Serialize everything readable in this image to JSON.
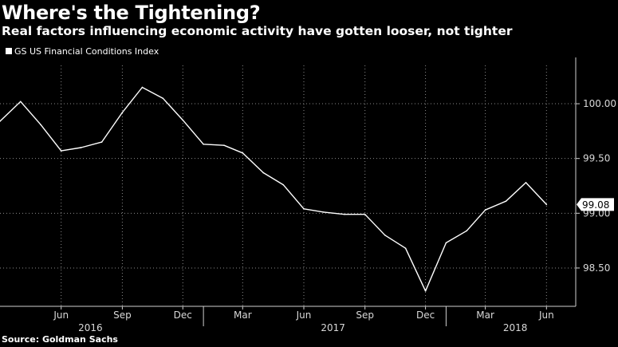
{
  "chart_data": {
    "type": "line",
    "title": "Where's the Tightening?",
    "subtitle": "Real factors influencing economic activity have gotten looser, not tighter",
    "source": "Source: Goldman Sachs",
    "legend": {
      "placement": "top-left",
      "entries": [
        "GS US Financial Conditions Index"
      ]
    },
    "grid": true,
    "x_ticks": [
      {
        "label": "Jun",
        "date": "2016-06-01"
      },
      {
        "label": "Sep",
        "date": "2016-09-01"
      },
      {
        "label": "Dec",
        "date": "2016-12-01"
      },
      {
        "label": "Mar",
        "date": "2017-03-01"
      },
      {
        "label": "Jun",
        "date": "2017-06-01"
      },
      {
        "label": "Sep",
        "date": "2017-09-01"
      },
      {
        "label": "Dec",
        "date": "2017-12-01"
      },
      {
        "label": "Mar",
        "date": "2018-03-01"
      },
      {
        "label": "Jun",
        "date": "2018-06-01"
      }
    ],
    "x_year_labels": [
      {
        "label": "2016",
        "date": "2016-07-15"
      },
      {
        "label": "2017",
        "date": "2017-07-15"
      },
      {
        "label": "2018",
        "date": "2018-04-15"
      }
    ],
    "x_range": [
      "2016-03-01",
      "2018-07-15"
    ],
    "y_ticks": [
      98.5,
      99.0,
      99.5,
      100.0
    ],
    "y_tick_labels": [
      "98.50",
      "99.00",
      "99.50",
      "100.00"
    ],
    "ylim": [
      98.15,
      100.35
    ],
    "last_value_label": "99.08",
    "series": [
      {
        "name": "GS US Financial Conditions Index",
        "color": "#ffffff",
        "points": [
          {
            "x": "2016-03-01",
            "y": 99.84
          },
          {
            "x": "2016-04-01",
            "y": 100.02
          },
          {
            "x": "2016-05-01",
            "y": 99.81
          },
          {
            "x": "2016-06-01",
            "y": 99.57
          },
          {
            "x": "2016-07-01",
            "y": 99.6
          },
          {
            "x": "2016-08-01",
            "y": 99.65
          },
          {
            "x": "2016-09-01",
            "y": 99.92
          },
          {
            "x": "2016-10-01",
            "y": 100.15
          },
          {
            "x": "2016-11-01",
            "y": 100.05
          },
          {
            "x": "2016-12-01",
            "y": 99.85
          },
          {
            "x": "2017-01-01",
            "y": 99.63
          },
          {
            "x": "2017-02-01",
            "y": 99.62
          },
          {
            "x": "2017-03-01",
            "y": 99.55
          },
          {
            "x": "2017-04-01",
            "y": 99.37
          },
          {
            "x": "2017-05-01",
            "y": 99.26
          },
          {
            "x": "2017-06-01",
            "y": 99.04
          },
          {
            "x": "2017-07-01",
            "y": 99.01
          },
          {
            "x": "2017-08-01",
            "y": 98.99
          },
          {
            "x": "2017-09-01",
            "y": 98.99
          },
          {
            "x": "2017-10-01",
            "y": 98.8
          },
          {
            "x": "2017-11-01",
            "y": 98.68
          },
          {
            "x": "2017-12-01",
            "y": 98.29
          },
          {
            "x": "2018-01-01",
            "y": 98.73
          },
          {
            "x": "2018-02-01",
            "y": 98.84
          },
          {
            "x": "2018-03-01",
            "y": 99.03
          },
          {
            "x": "2018-04-01",
            "y": 99.11
          },
          {
            "x": "2018-05-01",
            "y": 99.28
          },
          {
            "x": "2018-06-01",
            "y": 99.08
          }
        ]
      }
    ]
  }
}
